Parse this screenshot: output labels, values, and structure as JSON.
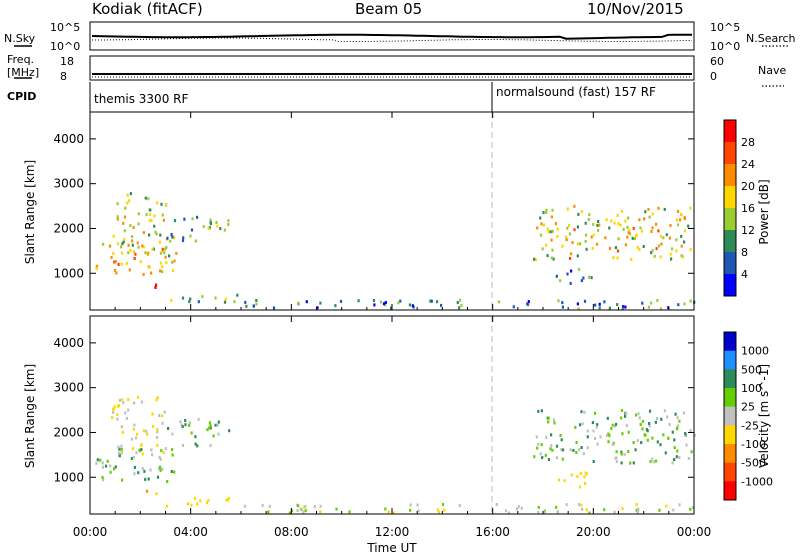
{
  "header": {
    "station": "Kodiak (fitACF)",
    "beam": "Beam 05",
    "date": "10/Nov/2015"
  },
  "top_strip": {
    "nsky_label": "N.Sky",
    "nsky_ticks": [
      "10^5",
      "10^0"
    ],
    "nsearch_label": "N.Search",
    "nsearch_ticks": [
      "10^5",
      "10^0"
    ],
    "freq_label_line1": "Freq.",
    "freq_label_line2": "[MHz]",
    "freq_ticks": [
      "18",
      "8"
    ],
    "nave_label": "Nave",
    "nave_ticks": [
      "60",
      "0"
    ],
    "cpid_label": "CPID"
  },
  "cpid_segments": [
    {
      "text": "themis 3300 RF",
      "start_hour": 0
    },
    {
      "text": "normalsound (fast) 157 RF",
      "start_hour": 16
    }
  ],
  "x_axis": {
    "label": "Time UT",
    "ticks": [
      "00:00",
      "04:00",
      "08:00",
      "12:00",
      "16:00",
      "20:00",
      "00:00"
    ],
    "range_hours": [
      0,
      24
    ]
  },
  "power_panel": {
    "ylabel": "Slant Range [km]",
    "yticks": [
      "4000",
      "3000",
      "2000",
      "1000"
    ],
    "colorbar_label": "Power [dB]",
    "colorbar_ticks": [
      "28",
      "24",
      "20",
      "16",
      "12",
      "8",
      "4"
    ],
    "colors": [
      "#0000ff",
      "#1e56b4",
      "#2e8b57",
      "#9acd32",
      "#ffd700",
      "#ff8c00",
      "#ff4500",
      "#ff0000"
    ]
  },
  "velocity_panel": {
    "ylabel": "Slant Range [km]",
    "yticks": [
      "4000",
      "3000",
      "2000",
      "1000"
    ],
    "colorbar_label": "Velocity [m s^-1]",
    "colorbar_ticks": [
      "1000",
      "500",
      "100",
      "25",
      "-25",
      "-100",
      "-500",
      "-1000"
    ],
    "colors": [
      "#0000cd",
      "#1e90ff",
      "#2e8b57",
      "#66cd00",
      "#c0c0c0",
      "#ffd700",
      "#ff8c00",
      "#ff4500",
      "#ff0000"
    ]
  },
  "chart_data": {
    "type": "heatmap",
    "title": "Kodiak (fitACF) Beam 05 10/Nov/2015",
    "xlabel": "Time UT",
    "ylabel": "Slant Range [km]",
    "xlim_hours": [
      0,
      24
    ],
    "ylim_km": [
      180,
      4600
    ],
    "series": [
      {
        "name": "Power [dB]",
        "zlim": [
          0,
          30
        ],
        "regions": [
          {
            "t0": 0.2,
            "t1": 3.4,
            "r0": 900,
            "r1": 1700,
            "z": 18
          },
          {
            "t0": 0.8,
            "t1": 3.0,
            "r0": 1500,
            "r1": 2800,
            "z": 14
          },
          {
            "t0": 2.0,
            "t1": 2.6,
            "r0": 600,
            "r1": 800,
            "z": 28
          },
          {
            "t0": 3.0,
            "t1": 5.5,
            "r0": 1700,
            "r1": 2300,
            "z": 10
          },
          {
            "t0": 3.0,
            "t1": 6.0,
            "r0": 350,
            "r1": 550,
            "z": 12
          },
          {
            "t0": 6.0,
            "t1": 24.0,
            "r0": 200,
            "r1": 400,
            "z": 8
          },
          {
            "t0": 17.6,
            "t1": 24.0,
            "r0": 1300,
            "r1": 2500,
            "z": 16
          },
          {
            "t0": 18.5,
            "t1": 20.0,
            "r0": 750,
            "r1": 1100,
            "z": 10
          }
        ]
      },
      {
        "name": "Velocity [m s^-1]",
        "zlim": [
          -1000,
          1000
        ],
        "regions": [
          {
            "t0": 0.2,
            "t1": 3.4,
            "r0": 900,
            "r1": 1700,
            "z": 0
          },
          {
            "t0": 0.8,
            "t1": 3.0,
            "r0": 1500,
            "r1": 2800,
            "z": -100
          },
          {
            "t0": 2.0,
            "t1": 2.6,
            "r0": 600,
            "r1": 800,
            "z": -500
          },
          {
            "t0": 3.0,
            "t1": 5.5,
            "r0": 1700,
            "r1": 2300,
            "z": 0
          },
          {
            "t0": 3.0,
            "t1": 6.0,
            "r0": 350,
            "r1": 550,
            "z": -200
          },
          {
            "t0": 6.0,
            "t1": 24.0,
            "r0": 200,
            "r1": 400,
            "z": -50
          },
          {
            "t0": 17.6,
            "t1": 24.0,
            "r0": 1300,
            "r1": 2500,
            "z": 0
          },
          {
            "t0": 18.5,
            "t1": 20.0,
            "r0": 750,
            "r1": 1100,
            "z": -300
          }
        ]
      }
    ]
  }
}
